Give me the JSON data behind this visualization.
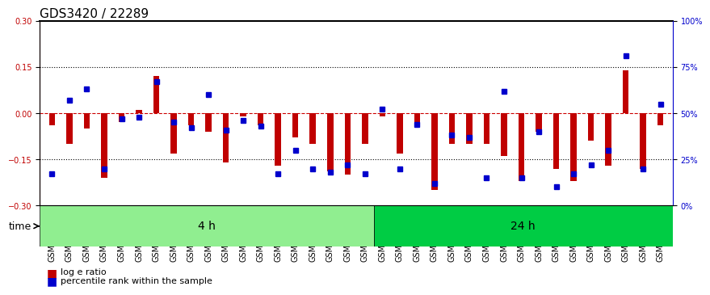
{
  "title": "GDS3420 / 22289",
  "samples": [
    "GSM182402",
    "GSM182403",
    "GSM182404",
    "GSM182405",
    "GSM182406",
    "GSM182407",
    "GSM182408",
    "GSM182409",
    "GSM182410",
    "GSM182411",
    "GSM182412",
    "GSM182413",
    "GSM182414",
    "GSM182415",
    "GSM182416",
    "GSM182417",
    "GSM182418",
    "GSM182419",
    "GSM182420",
    "GSM182421",
    "GSM182422",
    "GSM182423",
    "GSM182424",
    "GSM182425",
    "GSM182426",
    "GSM182427",
    "GSM182428",
    "GSM182429",
    "GSM182430",
    "GSM182431",
    "GSM182432",
    "GSM182433",
    "GSM182434",
    "GSM182435",
    "GSM182436",
    "GSM182437"
  ],
  "log_ratio": [
    -0.04,
    -0.1,
    -0.05,
    -0.21,
    -0.03,
    0.01,
    0.12,
    -0.13,
    -0.04,
    -0.06,
    -0.16,
    -0.01,
    -0.04,
    -0.17,
    -0.08,
    -0.1,
    -0.19,
    -0.2,
    -0.1,
    -0.01,
    -0.13,
    -0.04,
    -0.25,
    -0.1,
    -0.1,
    -0.1,
    -0.14,
    -0.22,
    -0.06,
    -0.18,
    -0.22,
    -0.09,
    -0.17,
    0.14,
    -0.18,
    -0.04
  ],
  "percentile": [
    17,
    57,
    63,
    20,
    47,
    48,
    67,
    45,
    42,
    60,
    41,
    46,
    43,
    17,
    30,
    20,
    18,
    22,
    17,
    52,
    20,
    44,
    12,
    38,
    37,
    15,
    62,
    15,
    40,
    10,
    17,
    22,
    30,
    81,
    20,
    55
  ],
  "group1_label": "4 h",
  "group2_label": "24 h",
  "group1_count": 19,
  "group2_count": 17,
  "ylim_left": [
    -0.3,
    0.3
  ],
  "ylim_right": [
    0,
    100
  ],
  "yticks_left": [
    -0.3,
    -0.15,
    0,
    0.15,
    0.3
  ],
  "yticks_right": [
    0,
    25,
    50,
    75,
    100
  ],
  "bar_color": "#C00000",
  "dot_color": "#0000CC",
  "group1_color": "#90EE90",
  "group2_color": "#00CC44",
  "hline_color": "#CC0000",
  "grid_color": "#000000",
  "title_fontsize": 11,
  "tick_fontsize": 7,
  "label_fontsize": 9
}
